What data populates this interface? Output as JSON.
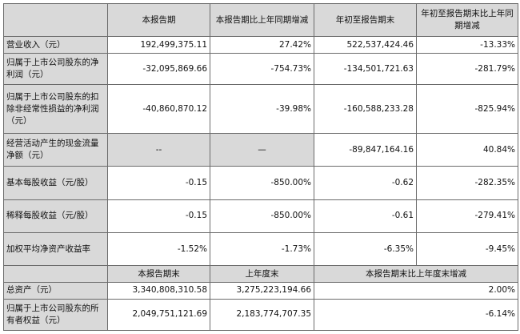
{
  "headers": {
    "col1": "本报告期",
    "col2": "本报告期比上年同期增减",
    "col3": "年初至报告期末",
    "col4": "年初至报告期末比上年同期增减"
  },
  "rows": [
    {
      "label": "营业收入（元）",
      "values": [
        "192,499,375.11",
        "27.42%",
        "522,537,424.46",
        "-13.33%"
      ]
    },
    {
      "label": "归属于上市公司股东的净利润（元）",
      "values": [
        "-32,095,869.66",
        "-754.73%",
        "-134,501,721.63",
        "-281.79%"
      ]
    },
    {
      "label": "归属于上市公司股东的扣除非经常性损益的净利润（元）",
      "values": [
        "-40,860,870.12",
        "-39.98%",
        "-160,588,233.28",
        "-825.94%"
      ]
    },
    {
      "label": "经营活动产生的现金流量净额（元）",
      "values": [
        "--",
        "—",
        "-89,847,164.16",
        "40.84%"
      ]
    },
    {
      "label": "基本每股收益（元/股）",
      "values": [
        "-0.15",
        "-850.00%",
        "-0.62",
        "-282.35%"
      ]
    },
    {
      "label": "稀释每股收益（元/股）",
      "values": [
        "-0.15",
        "-850.00%",
        "-0.61",
        "-279.41%"
      ]
    },
    {
      "label": "加权平均净资产收益率",
      "values": [
        "-1.52%",
        "-1.73%",
        "-6.35%",
        "-9.45%"
      ]
    }
  ],
  "balance_headers": {
    "col1": "本报告期末",
    "col2": "上年度末",
    "col3": "本报告期末比上年度末增减"
  },
  "balance_rows": [
    {
      "label": "总资产（元）",
      "values": [
        "3,340,808,310.58",
        "3,275,223,194.66",
        "2.00%"
      ]
    },
    {
      "label": "归属于上市公司股东的所有者权益（元）",
      "values": [
        "2,049,751,121.69",
        "2,183,774,707.35",
        "-6.14%"
      ]
    }
  ]
}
